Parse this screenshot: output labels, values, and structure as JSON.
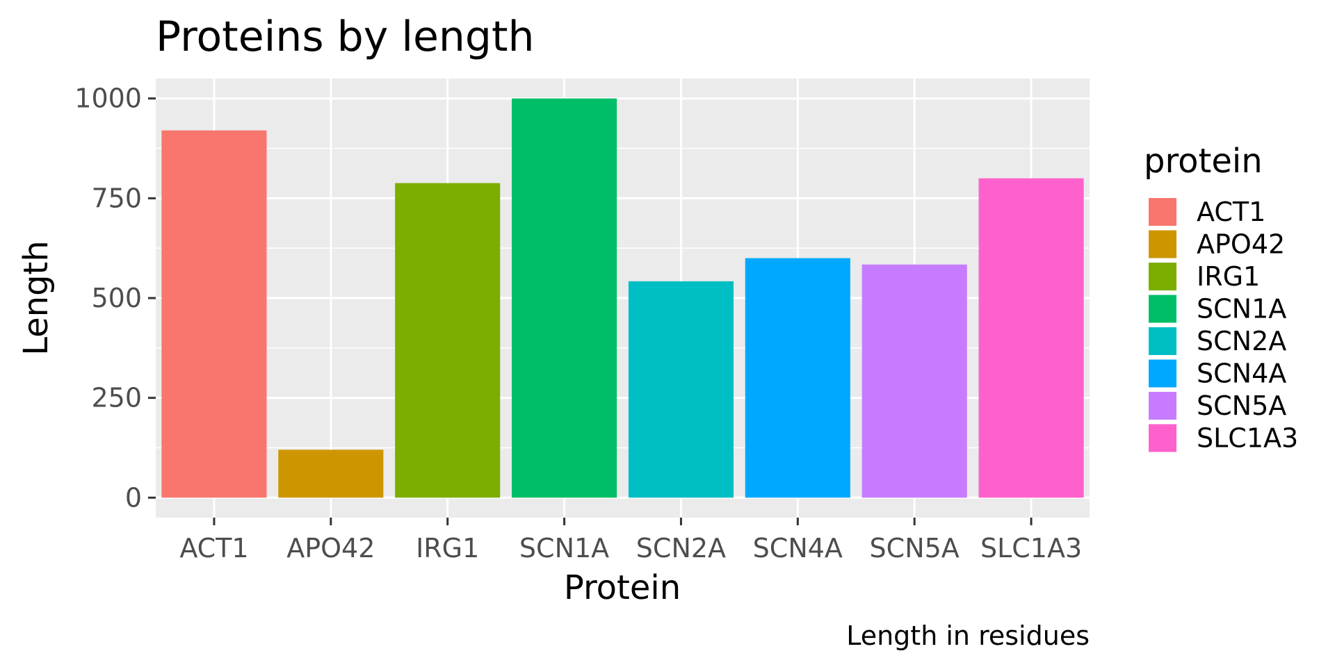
{
  "chart_data": {
    "type": "bar",
    "title": "Proteins by length",
    "xlabel": "Protein",
    "ylabel": "Length",
    "caption": "Length in residues",
    "categories": [
      "ACT1",
      "APO42",
      "IRG1",
      "SCN1A",
      "SCN2A",
      "SCN4A",
      "SCN5A",
      "SLC1A3"
    ],
    "values": [
      920,
      120,
      788,
      1000,
      542,
      600,
      584,
      800
    ],
    "colors": [
      "#F8766D",
      "#CD9600",
      "#7CAE00",
      "#00BE67",
      "#00BFC4",
      "#00A9FF",
      "#C77CFF",
      "#FF61CC"
    ],
    "yticks": [
      "0",
      "250",
      "500",
      "750",
      "1000"
    ],
    "ylim": [
      -50,
      1050
    ],
    "grid": true,
    "background": "#EBEBEB",
    "legend": {
      "title": "protein",
      "position": "right",
      "items": [
        "ACT1",
        "APO42",
        "IRG1",
        "SCN1A",
        "SCN2A",
        "SCN4A",
        "SCN5A",
        "SLC1A3"
      ]
    }
  }
}
